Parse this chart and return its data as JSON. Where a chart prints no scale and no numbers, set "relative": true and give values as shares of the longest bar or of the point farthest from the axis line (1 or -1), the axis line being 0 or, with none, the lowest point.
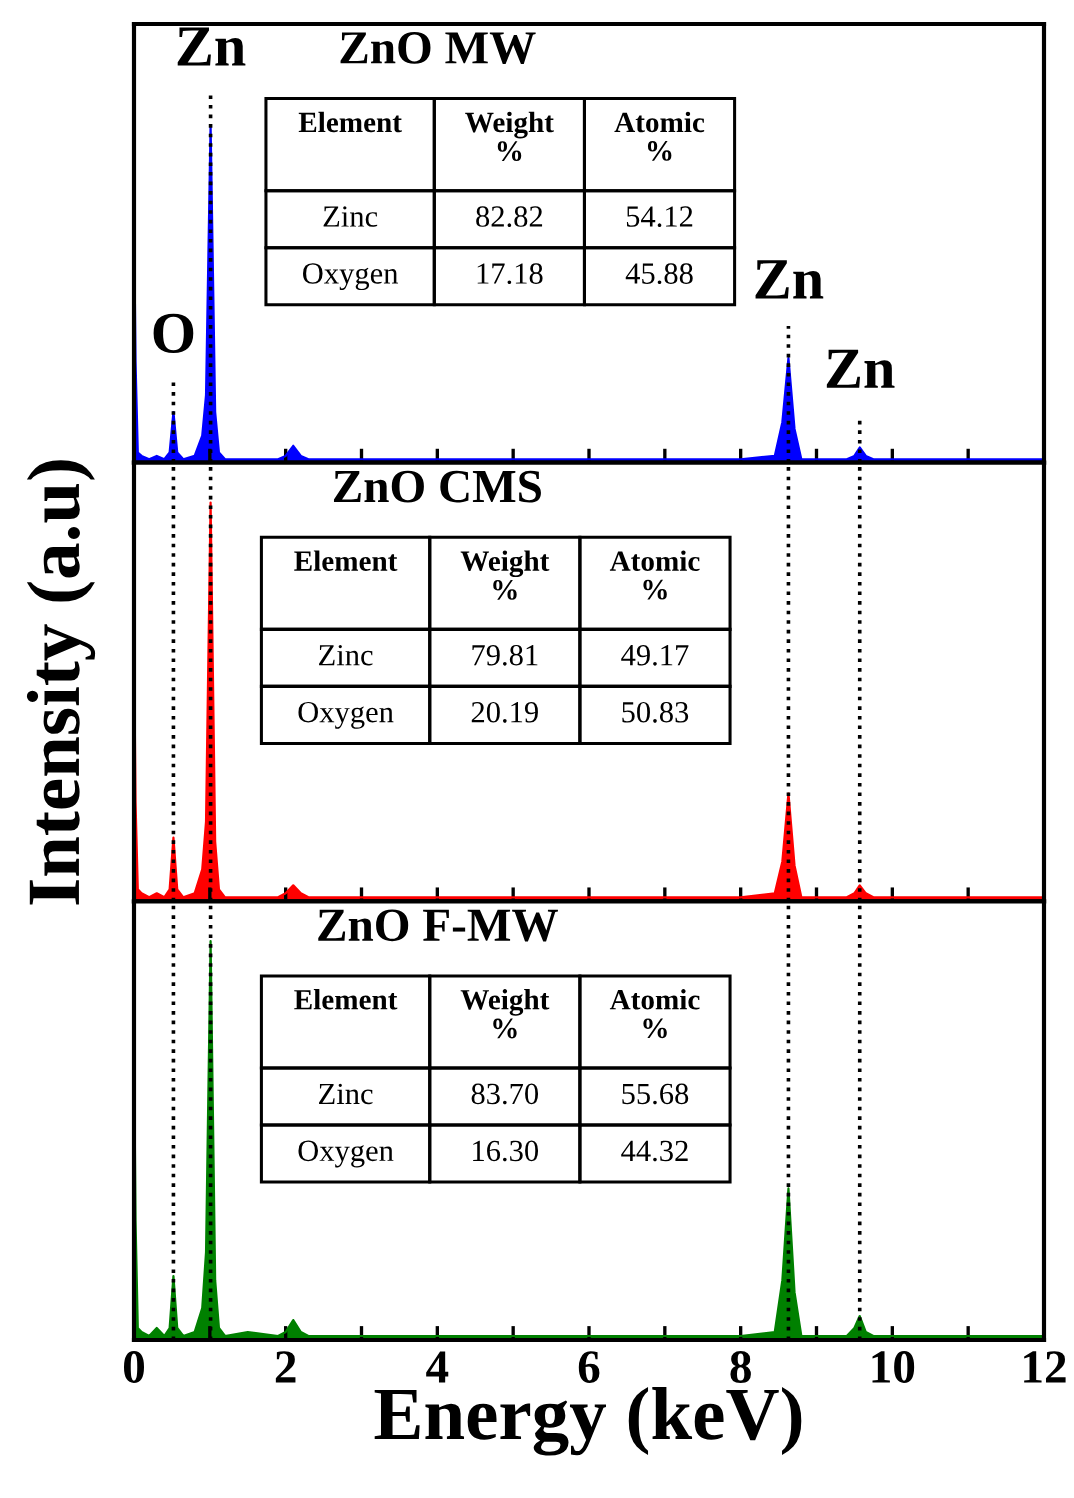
{
  "chart_data": [
    {
      "type": "area",
      "title": "ZnO MW",
      "relative": true,
      "tick_labels": false,
      "x": [
        0,
        0.02,
        0.05,
        0.1,
        0.2,
        0.3,
        0.4,
        0.47,
        0.52,
        0.57,
        0.65,
        0.8,
        0.9,
        0.95,
        1.01,
        1.07,
        1.12,
        1.2,
        1.5,
        1.9,
        2.0,
        2.1,
        2.2,
        2.3,
        3,
        4,
        5,
        6,
        7,
        8,
        8.45,
        8.55,
        8.63,
        8.71,
        8.8,
        9.0,
        9.4,
        9.5,
        9.57,
        9.65,
        9.75,
        10,
        11,
        12
      ],
      "series": [
        {
          "color": "#0000ff",
          "values": [
            0.74,
            0.3,
            0.03,
            0.02,
            0.01,
            0.02,
            0.01,
            0.03,
            0.15,
            0.03,
            0.01,
            0.02,
            0.08,
            0.2,
            1,
            0.15,
            0.03,
            0.01,
            0.01,
            0.01,
            0.02,
            0.05,
            0.02,
            0.01,
            0.01,
            0.01,
            0.01,
            0.01,
            0.01,
            0.01,
            0.02,
            0.12,
            0.31,
            0.1,
            0.01,
            0.01,
            0.01,
            0.02,
            0.045,
            0.02,
            0.01,
            0.01,
            0.01,
            0.01
          ]
        }
      ],
      "xlim": [
        0,
        12
      ],
      "xticks": [
        0,
        {
          "value": 1,
          "label": null
        },
        2,
        {
          "value": 3,
          "label": null
        },
        4,
        {
          "value": 5,
          "label": null
        },
        6,
        {
          "value": 7,
          "label": null
        },
        8,
        {
          "value": 9,
          "label": null
        },
        10,
        {
          "value": 11,
          "label": null
        },
        12
      ],
      "ref_lines": [
        {
          "axis": "x",
          "value": 0.52,
          "line_style": "dotted",
          "color": "#000000"
        },
        {
          "axis": "x",
          "value": 1.01,
          "line_style": "dotted",
          "color": "#000000"
        },
        {
          "axis": "x",
          "value": 8.63,
          "line_style": "dotted",
          "color": "#000000"
        },
        {
          "axis": "x",
          "value": 9.57,
          "line_style": "dotted",
          "color": "#000000"
        }
      ],
      "annotations": [
        {
          "text": "O",
          "x": 0.52,
          "y": 0.15
        },
        {
          "text": "Zn",
          "x": 1.01,
          "y": 1
        },
        {
          "text": "Zn",
          "x": 8.63,
          "y": 0.31
        },
        {
          "text": "Zn",
          "x": 9.57,
          "y": 0.045
        },
        "Element",
        "Weight\n%",
        "Atomic\n%",
        "Zinc",
        "82.82",
        "54.12",
        "Oxygen",
        "17.18",
        "45.88"
      ]
    },
    {
      "type": "area",
      "title": "ZnO CMS",
      "relative": true,
      "tick_labels": false,
      "ylabel": "Intensity (a.u)",
      "x": [
        0,
        0.02,
        0.05,
        0.1,
        0.2,
        0.3,
        0.4,
        0.47,
        0.52,
        0.57,
        0.65,
        0.8,
        0.9,
        0.95,
        1.01,
        1.07,
        1.12,
        1.2,
        1.5,
        1.9,
        2.0,
        2.1,
        2.2,
        2.3,
        3,
        4,
        5,
        6,
        7,
        8,
        8.45,
        8.55,
        8.63,
        8.71,
        8.8,
        9.0,
        9.4,
        9.5,
        9.57,
        9.65,
        9.75,
        10,
        11,
        12
      ],
      "series": [
        {
          "color": "#ff0000",
          "values": [
            0.66,
            0.25,
            0.03,
            0.02,
            0.01,
            0.02,
            0.01,
            0.03,
            0.16,
            0.03,
            0.01,
            0.02,
            0.08,
            0.2,
            1,
            0.15,
            0.03,
            0.01,
            0.01,
            0.01,
            0.02,
            0.04,
            0.02,
            0.01,
            0.01,
            0.01,
            0.01,
            0.01,
            0.01,
            0.01,
            0.02,
            0.1,
            0.27,
            0.09,
            0.01,
            0.01,
            0.01,
            0.02,
            0.04,
            0.02,
            0.01,
            0.01,
            0.01,
            0.01
          ]
        }
      ],
      "xlim": [
        0,
        12
      ],
      "xticks": [
        0,
        {
          "value": 1,
          "label": null
        },
        2,
        {
          "value": 3,
          "label": null
        },
        4,
        {
          "value": 5,
          "label": null
        },
        6,
        {
          "value": 7,
          "label": null
        },
        8,
        {
          "value": 9,
          "label": null
        },
        10,
        {
          "value": 11,
          "label": null
        },
        12
      ],
      "ref_lines": [
        {
          "axis": "x",
          "value": 0.52,
          "line_style": "dotted",
          "color": "#000000"
        },
        {
          "axis": "x",
          "value": 1.01,
          "line_style": "dotted",
          "color": "#000000"
        },
        {
          "axis": "x",
          "value": 8.63,
          "line_style": "dotted",
          "color": "#000000"
        },
        {
          "axis": "x",
          "value": 9.57,
          "line_style": "dotted",
          "color": "#000000"
        }
      ],
      "annotations": [
        "Element",
        "Weight\n%",
        "Atomic\n%",
        "Zinc",
        "79.81",
        "49.17",
        "Oxygen",
        "20.19",
        "50.83"
      ]
    },
    {
      "type": "area",
      "title": "ZnO F-MW",
      "relative": true,
      "tick_labels": "x",
      "xlabel": "Energy (keV)",
      "x": [
        0,
        0.02,
        0.05,
        0.1,
        0.2,
        0.3,
        0.4,
        0.47,
        0.52,
        0.57,
        0.65,
        0.8,
        0.9,
        0.95,
        1.01,
        1.07,
        1.12,
        1.2,
        1.5,
        1.9,
        2.0,
        2.1,
        2.2,
        2.3,
        3,
        4,
        5,
        6,
        7,
        8,
        8.45,
        8.55,
        8.63,
        8.71,
        8.8,
        9.0,
        9.4,
        9.5,
        9.57,
        9.65,
        9.75,
        10,
        11,
        12
      ],
      "series": [
        {
          "color": "#008000",
          "values": [
            0.75,
            0.3,
            0.03,
            0.02,
            0.01,
            0.03,
            0.01,
            0.03,
            0.16,
            0.03,
            0.01,
            0.02,
            0.08,
            0.22,
            1,
            0.15,
            0.03,
            0.01,
            0.02,
            0.01,
            0.02,
            0.05,
            0.02,
            0.01,
            0.01,
            0.01,
            0.01,
            0.01,
            0.01,
            0.01,
            0.02,
            0.15,
            0.38,
            0.12,
            0.01,
            0.01,
            0.01,
            0.03,
            0.06,
            0.02,
            0.01,
            0.01,
            0.01,
            0.01
          ]
        }
      ],
      "xlim": [
        0,
        12
      ],
      "xticks": [
        0,
        {
          "value": 1,
          "label": null
        },
        2,
        {
          "value": 3,
          "label": null
        },
        4,
        {
          "value": 5,
          "label": null
        },
        6,
        {
          "value": 7,
          "label": null
        },
        8,
        {
          "value": 9,
          "label": null
        },
        10,
        {
          "value": 11,
          "label": null
        },
        12
      ],
      "ref_lines": [
        {
          "axis": "x",
          "value": 0.52,
          "line_style": "dotted",
          "color": "#000000"
        },
        {
          "axis": "x",
          "value": 1.01,
          "line_style": "dotted",
          "color": "#000000"
        },
        {
          "axis": "x",
          "value": 8.63,
          "line_style": "dotted",
          "color": "#000000"
        },
        {
          "axis": "x",
          "value": 9.57,
          "line_style": "dotted",
          "color": "#000000"
        }
      ],
      "annotations": [
        "Element",
        "Weight\n%",
        "Atomic\n%",
        "Zinc",
        "83.70",
        "55.68",
        "Oxygen",
        "16.30",
        "44.32"
      ]
    }
  ]
}
